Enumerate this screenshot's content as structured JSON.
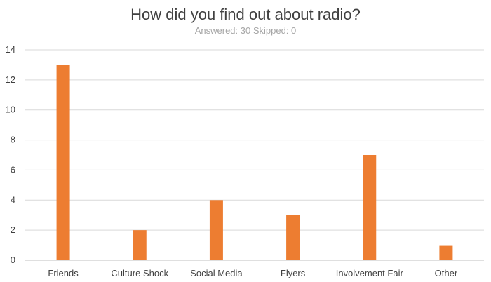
{
  "chart_data": {
    "type": "bar",
    "title": "How did you find out about radio?",
    "subtitle": "Answered: 30 Skipped: 0",
    "categories": [
      "Friends",
      "Culture Shock",
      "Social Media",
      "Flyers",
      "Involvement Fair",
      "Other"
    ],
    "values": [
      13,
      2,
      4,
      3,
      7,
      1
    ],
    "xlabel": "",
    "ylabel": "",
    "ylim": [
      0,
      14
    ],
    "yticks": [
      0,
      2,
      4,
      6,
      8,
      10,
      12,
      14
    ],
    "grid": true,
    "legend": "none",
    "bar_color": "#ed7d31"
  }
}
